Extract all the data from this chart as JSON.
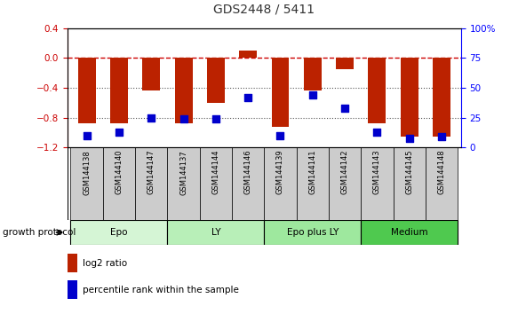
{
  "title": "GDS2448 / 5411",
  "samples": [
    "GSM144138",
    "GSM144140",
    "GSM144147",
    "GSM144137",
    "GSM144144",
    "GSM144146",
    "GSM144139",
    "GSM144141",
    "GSM144142",
    "GSM144143",
    "GSM144145",
    "GSM144148"
  ],
  "log2_ratio": [
    -0.87,
    -0.87,
    -0.44,
    -0.88,
    -0.6,
    0.1,
    -0.92,
    -0.44,
    -0.15,
    -0.88,
    -1.05,
    -1.05
  ],
  "percentile_rank": [
    10,
    13,
    25,
    24,
    24,
    42,
    10,
    44,
    33,
    13,
    8,
    9
  ],
  "groups": [
    {
      "label": "Epo",
      "start": 0,
      "end": 3,
      "color": "#d5f5d5"
    },
    {
      "label": "LY",
      "start": 3,
      "end": 6,
      "color": "#b8efb8"
    },
    {
      "label": "Epo plus LY",
      "start": 6,
      "end": 9,
      "color": "#9ee89e"
    },
    {
      "label": "Medium",
      "start": 9,
      "end": 12,
      "color": "#4fc94f"
    }
  ],
  "bar_color": "#bb2200",
  "dot_color": "#0000cc",
  "zero_line_color": "#cc0000",
  "dotted_line_color": "#555555",
  "ylim_left": [
    -1.2,
    0.4
  ],
  "ylim_right": [
    0,
    100
  ],
  "yticks_left": [
    -1.2,
    -0.8,
    -0.4,
    0.0,
    0.4
  ],
  "yticks_right": [
    0,
    25,
    50,
    75,
    100
  ],
  "ytick_labels_right": [
    "0",
    "25",
    "50",
    "75",
    "100%"
  ],
  "bar_width": 0.55,
  "dot_size": 40
}
